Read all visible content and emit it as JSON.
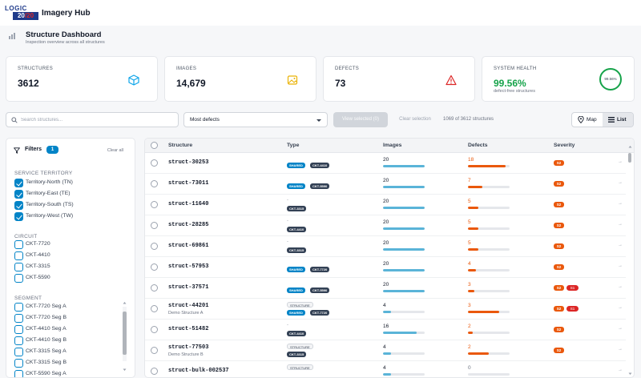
{
  "app": {
    "logo_line1": "LOGIC",
    "logo_line2a": "20",
    "logo_line2b": "/20",
    "title": "Imagery Hub"
  },
  "page": {
    "title": "Structure Dashboard",
    "subtitle": "Inspection overview across all structures"
  },
  "cards": [
    {
      "label": "STRUCTURES",
      "value": "3612",
      "icon": "cube-icon",
      "icon_color": "#0ea5e9"
    },
    {
      "label": "IMAGES",
      "value": "14,679",
      "icon": "image-icon",
      "icon_color": "#eab308"
    },
    {
      "label": "DEFECTS",
      "value": "73",
      "icon": "warning-icon",
      "icon_color": "#dc2626"
    },
    {
      "label": "SYSTEM HEALTH",
      "value": "99.56%",
      "sub": "defect-free structures",
      "ring": "99.56%",
      "value_color": "#16a34a"
    }
  ],
  "toolbar": {
    "search_placeholder": "Search structures...",
    "sort_value": "Most defects",
    "view_selected": "View selected (0)",
    "clear_selection": "Clear selection",
    "count_text": "1069 of 3612 structures",
    "map_label": "Map",
    "list_label": "List"
  },
  "filters": {
    "title": "Filters",
    "count": "1",
    "clear_all": "Clear all",
    "service_territory": {
      "label": "SERVICE TERRITORY",
      "options": [
        "Territory-North (TN)",
        "Territory-East (TE)",
        "Territory-South (TS)",
        "Territory-West (TW)"
      ]
    },
    "circuit": {
      "label": "CIRCUIT",
      "options": [
        "CKT-7720",
        "CKT-4410",
        "CKT-3315",
        "CKT-5590"
      ]
    },
    "segment": {
      "label": "SEGMENT",
      "options": [
        "CKT-7720 Seg A",
        "CKT-7720 Seg B",
        "CKT-4410 Seg A",
        "CKT-4410 Seg B",
        "CKT-3315 Seg A",
        "CKT-3315 Seg B",
        "CKT-5590 Seg A"
      ]
    }
  },
  "table": {
    "headers": [
      "Structure",
      "Type",
      "Images",
      "Defects",
      "Severity"
    ],
    "rows": [
      {
        "name": "struct-30253",
        "sub": "",
        "tags": [
          "SHARED",
          "CKT-4410"
        ],
        "type_label": "",
        "images": "20",
        "img_frac": 1.0,
        "defects": "18",
        "def_frac": 0.9,
        "sev": [
          "S2"
        ]
      },
      {
        "name": "struct-73011",
        "sub": "",
        "tags": [
          "SHARED",
          "CKT-5590"
        ],
        "type_label": "",
        "images": "20",
        "img_frac": 1.0,
        "defects": "7",
        "def_frac": 0.35,
        "sev": [
          "S2"
        ]
      },
      {
        "name": "struct-11640",
        "sub": "",
        "tags": [
          "CKT-3315"
        ],
        "type_label": "-",
        "images": "20",
        "img_frac": 1.0,
        "defects": "5",
        "def_frac": 0.25,
        "sev": [
          "S2"
        ]
      },
      {
        "name": "struct-28285",
        "sub": "",
        "tags": [
          "CKT-4410"
        ],
        "type_label": "-",
        "images": "20",
        "img_frac": 1.0,
        "defects": "5",
        "def_frac": 0.25,
        "sev": [
          "S2"
        ]
      },
      {
        "name": "struct-69861",
        "sub": "",
        "tags": [
          "CKT-3315"
        ],
        "type_label": "-",
        "images": "20",
        "img_frac": 1.0,
        "defects": "5",
        "def_frac": 0.25,
        "sev": [
          "S2"
        ]
      },
      {
        "name": "struct-57953",
        "sub": "",
        "tags": [
          "SHARED",
          "CKT-7720"
        ],
        "type_label": "",
        "images": "20",
        "img_frac": 1.0,
        "defects": "4",
        "def_frac": 0.2,
        "sev": [
          "S2"
        ]
      },
      {
        "name": "struct-37571",
        "sub": "",
        "tags": [
          "SHARED",
          "CKT-5590"
        ],
        "type_label": "",
        "images": "20",
        "img_frac": 1.0,
        "defects": "3",
        "def_frac": 0.15,
        "sev": [
          "S2",
          "S1"
        ]
      },
      {
        "name": "struct-44201",
        "sub": "Demo Structure A",
        "tags": [
          "SHARED",
          "CKT-7720"
        ],
        "type_label": "STRUCTURE",
        "images": "4",
        "img_frac": 0.2,
        "defects": "3",
        "def_frac": 0.75,
        "sev": [
          "S2",
          "S1"
        ]
      },
      {
        "name": "struct-51482",
        "sub": "",
        "tags": [
          "CKT-4410"
        ],
        "type_label": "-",
        "images": "16",
        "img_frac": 0.8,
        "defects": "2",
        "def_frac": 0.12,
        "sev": [
          "S2"
        ]
      },
      {
        "name": "struct-77503",
        "sub": "Demo Structure B",
        "tags": [
          "CKT-3315"
        ],
        "type_label": "STRUCTURE",
        "images": "4",
        "img_frac": 0.2,
        "defects": "2",
        "def_frac": 0.5,
        "sev": [
          "S2"
        ]
      },
      {
        "name": "struct-bulk-002537",
        "sub": "",
        "tags": [],
        "type_label": "STRUCTURE",
        "images": "4",
        "img_frac": 0.2,
        "defects": "0",
        "def_frac": 0.0,
        "sev": []
      }
    ]
  },
  "colors": {
    "accent": "#0284c7",
    "images_bar": "#5ab4d8",
    "defects_bar": "#ea580c",
    "severity": "#ea580c",
    "severity_critical": "#dc2626",
    "health": "#16a34a"
  }
}
